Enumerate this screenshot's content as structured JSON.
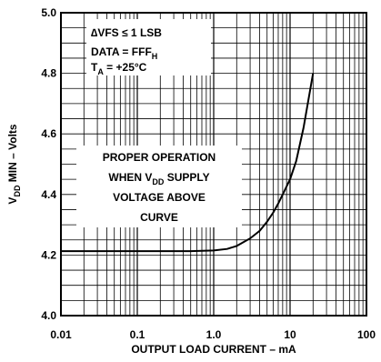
{
  "chart_data": {
    "type": "line",
    "x_scale": "log",
    "xlabel": "OUTPUT LOAD CURRENT – mA",
    "ylabel": {
      "prefix": "V",
      "sub": "DD",
      "suffix": " MIN – Volts"
    },
    "xlim": [
      0.01,
      100
    ],
    "ylim": [
      4.0,
      5.0
    ],
    "x_tick_labels": [
      "0.01",
      "0.1",
      "1.0",
      "10",
      "100"
    ],
    "x_ticks": [
      0.01,
      0.1,
      1.0,
      10,
      100
    ],
    "y_tick_labels": [
      "4.0",
      "4.2",
      "4.4",
      "4.6",
      "4.8",
      "5.0"
    ],
    "y_ticks": [
      4.0,
      4.2,
      4.4,
      4.6,
      4.8,
      5.0
    ],
    "grid": true,
    "series": [
      {
        "x": [
          0.01,
          0.1,
          0.5,
          1.0,
          1.5,
          2.0,
          3.0,
          4.0,
          5.0,
          6.0,
          7.0,
          8.0,
          10.0,
          12.0,
          15.0,
          20.0
        ],
        "y": [
          4.213,
          4.213,
          4.213,
          4.215,
          4.22,
          4.23,
          4.255,
          4.28,
          4.31,
          4.34,
          4.37,
          4.4,
          4.45,
          4.51,
          4.62,
          4.8
        ]
      }
    ],
    "conditions": {
      "line1": "∆VFS ≤ 1 LSB",
      "line2": {
        "text": "DATA = FFF",
        "sub": "H"
      },
      "line3": {
        "prefix": "T",
        "sub": "A",
        "suffix": " = +25°C"
      }
    },
    "annotation": {
      "line1": "PROPER OPERATION",
      "line2": {
        "prefix": "WHEN V",
        "sub": "DD",
        "suffix": " SUPPLY"
      },
      "line3": "VOLTAGE ABOVE",
      "line4": "CURVE"
    }
  }
}
